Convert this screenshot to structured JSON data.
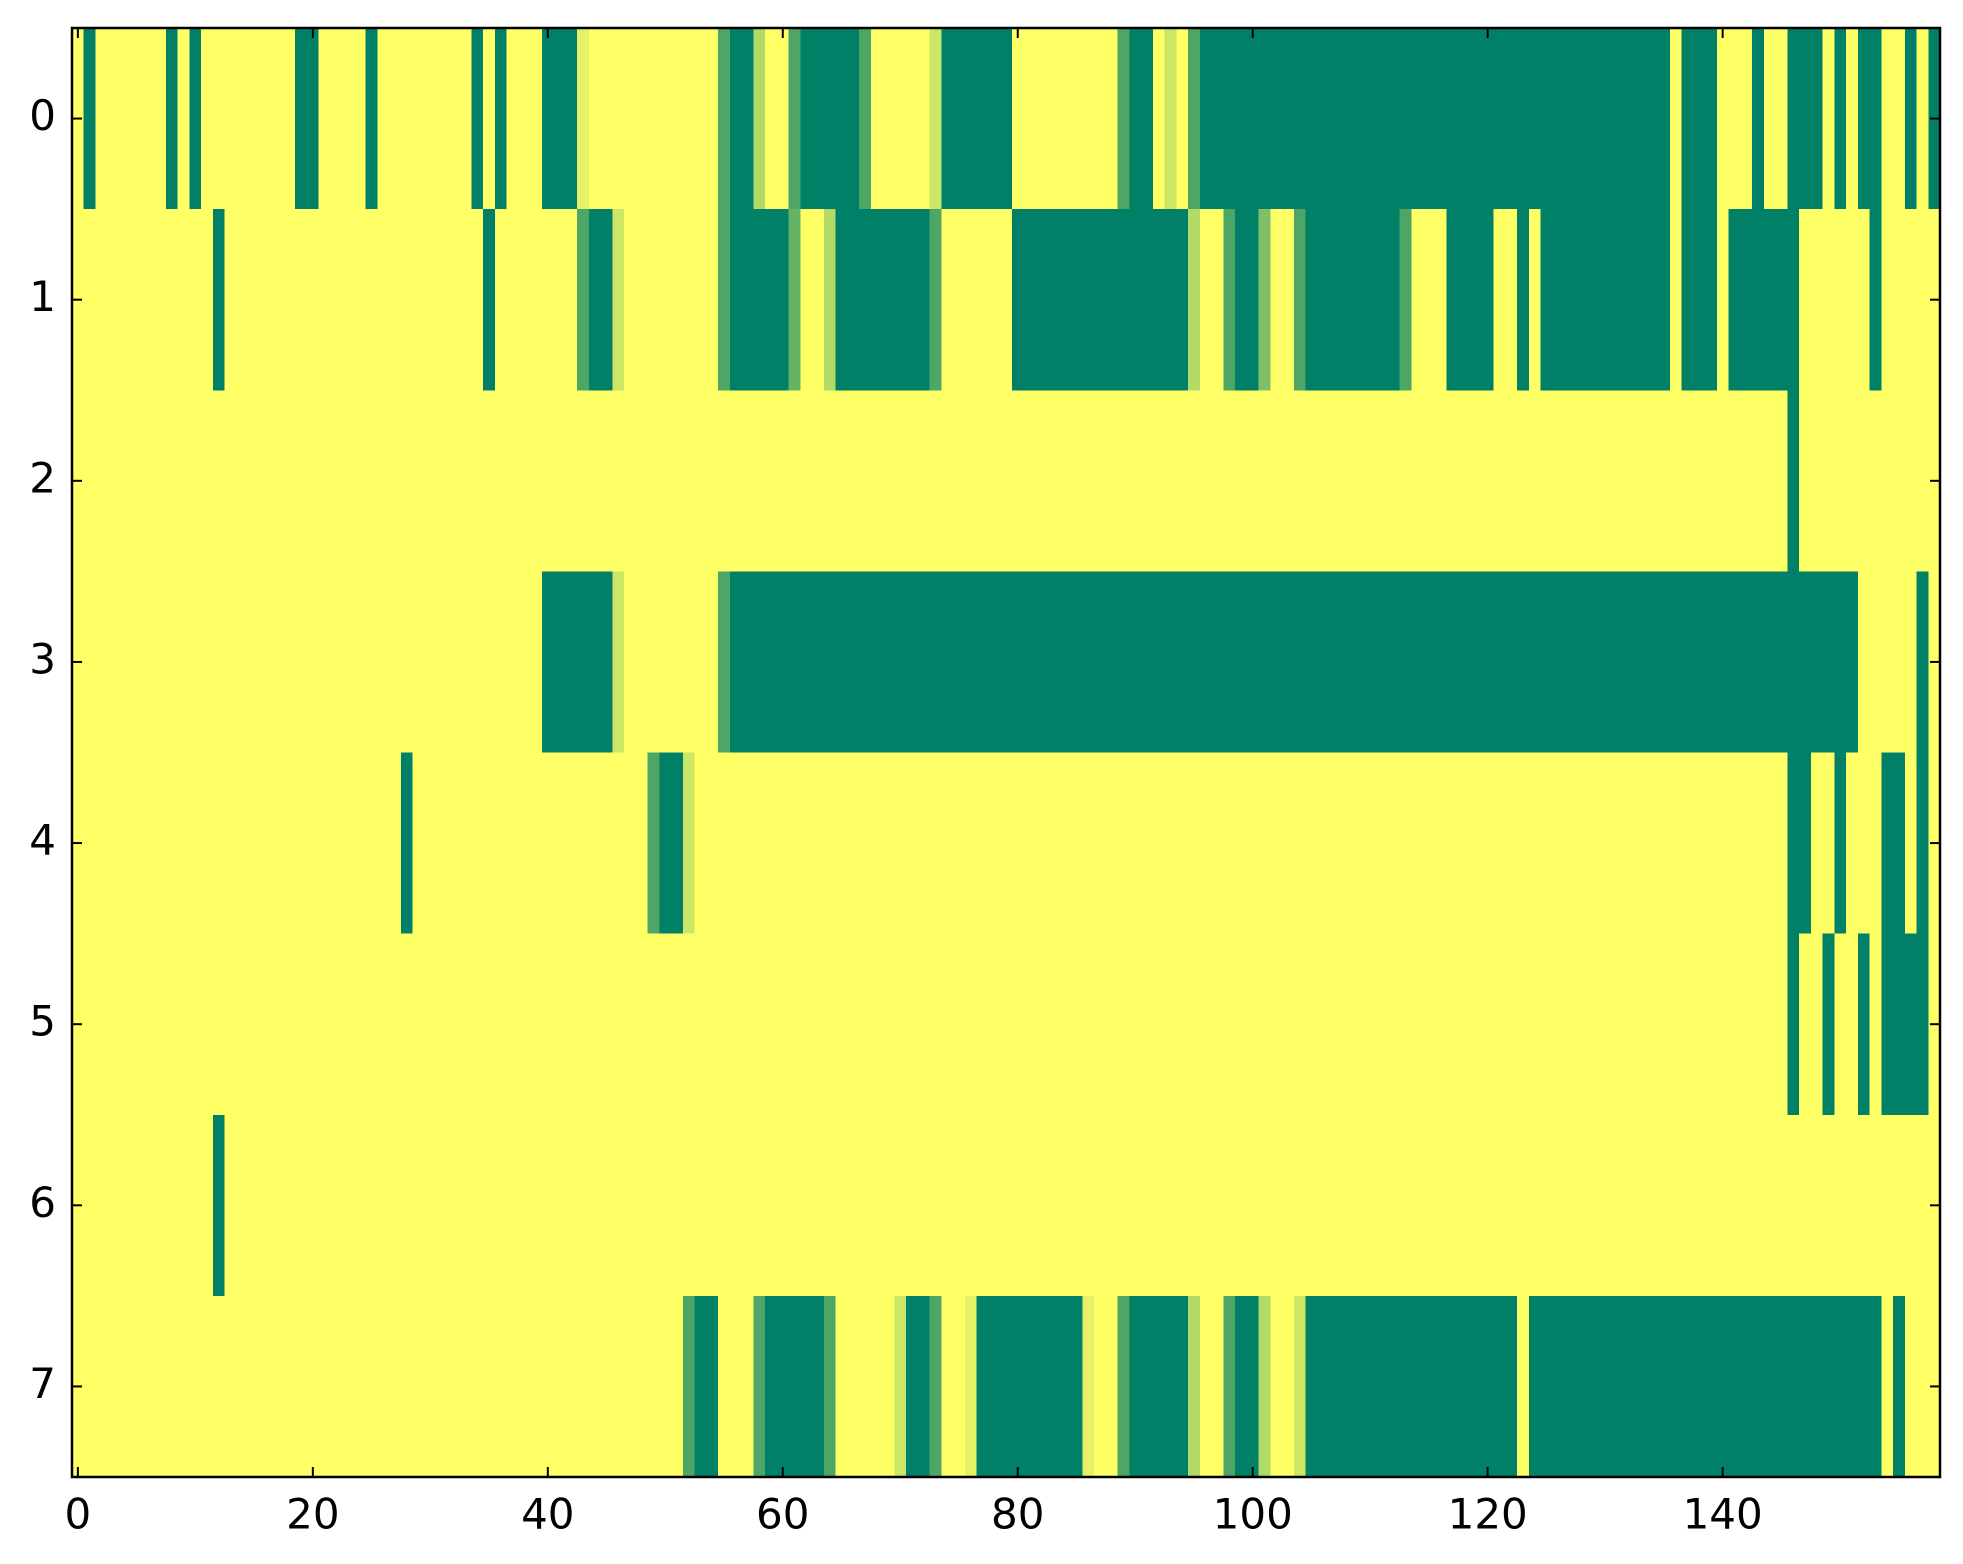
{
  "chart_data": {
    "type": "heatmap",
    "colormap": "summer",
    "xlim": [
      -0.5,
      158.5
    ],
    "xticks": [
      0,
      20,
      40,
      60,
      80,
      100,
      120,
      140
    ],
    "ylim": [
      7.5,
      -0.5
    ],
    "yticks": [
      0,
      1,
      2,
      3,
      4,
      5,
      6,
      7
    ],
    "values": [
      [
        1,
        0,
        1,
        1,
        1,
        1,
        1,
        1,
        0,
        1,
        0,
        1,
        1,
        1,
        1,
        1,
        1,
        1,
        1,
        0,
        0,
        1,
        1,
        1,
        1,
        0,
        1,
        1,
        1,
        1,
        1,
        1,
        1,
        1,
        0,
        1,
        0,
        1,
        1,
        1,
        0,
        0,
        0,
        0.9,
        1,
        1,
        1,
        1,
        1,
        1,
        1,
        1,
        1,
        1,
        1,
        0.3,
        0,
        0,
        0.7,
        1,
        1,
        0.3,
        0,
        0,
        0,
        0,
        0,
        0.3,
        1,
        1,
        1,
        1,
        1,
        0.8,
        0,
        0,
        0,
        0,
        0,
        0,
        1,
        1,
        1,
        1,
        1,
        1,
        1,
        1,
        1,
        0.3,
        0,
        0,
        1,
        0.8,
        1,
        0.3,
        0,
        0,
        0,
        0,
        0,
        0,
        0,
        0,
        0,
        0,
        0,
        0,
        0,
        0,
        0,
        0,
        0,
        0,
        0,
        0,
        0,
        0,
        0,
        0,
        0,
        0,
        0,
        0,
        0,
        0,
        0,
        0,
        0,
        0,
        0,
        0,
        0,
        0,
        0,
        0,
        1,
        0,
        0,
        0,
        1,
        1,
        1,
        0,
        1,
        1,
        0,
        0,
        0,
        1,
        0,
        1,
        0,
        0,
        1,
        1,
        0,
        1,
        0
      ],
      [
        1,
        1,
        1,
        1,
        1,
        1,
        1,
        1,
        1,
        1,
        1,
        1,
        0,
        1,
        1,
        1,
        1,
        1,
        1,
        1,
        1,
        1,
        1,
        1,
        1,
        1,
        1,
        1,
        1,
        1,
        1,
        1,
        1,
        1,
        1,
        0,
        1,
        1,
        1,
        1,
        1,
        1,
        1,
        0.3,
        0,
        0,
        0.8,
        1,
        1,
        1,
        1,
        1,
        1,
        1,
        1,
        0.3,
        0,
        0,
        0,
        0,
        0,
        0.4,
        1,
        1,
        0.7,
        0,
        0,
        0,
        0,
        0,
        0,
        0,
        0,
        0.3,
        1,
        1,
        1,
        1,
        1,
        1,
        0,
        0,
        0,
        0,
        0,
        0,
        0,
        0,
        0,
        0,
        0,
        0,
        0,
        0,
        0,
        0.7,
        1,
        1,
        0.3,
        0,
        0,
        0.5,
        1,
        1,
        0.3,
        0,
        0,
        0,
        0,
        0,
        0,
        0,
        0,
        0.3,
        1,
        1,
        1,
        0,
        0,
        0,
        0,
        1,
        1,
        0,
        1,
        0,
        0,
        0,
        0,
        0,
        0,
        0,
        0,
        0,
        0,
        0,
        1,
        0,
        0,
        0,
        1,
        0,
        0,
        0,
        0,
        0,
        0,
        1,
        1,
        1,
        1,
        1,
        1,
        0,
        1,
        1,
        1,
        1,
        1
      ],
      [
        1,
        1,
        1,
        1,
        1,
        1,
        1,
        1,
        1,
        1,
        1,
        1,
        1,
        1,
        1,
        1,
        1,
        1,
        1,
        1,
        1,
        1,
        1,
        1,
        1,
        1,
        1,
        1,
        1,
        1,
        1,
        1,
        1,
        1,
        1,
        1,
        1,
        1,
        1,
        1,
        1,
        1,
        1,
        1,
        1,
        1,
        1,
        1,
        1,
        1,
        1,
        1,
        1,
        1,
        1,
        1,
        1,
        1,
        1,
        1,
        1,
        1,
        1,
        1,
        1,
        1,
        1,
        1,
        1,
        1,
        1,
        1,
        1,
        1,
        1,
        1,
        1,
        1,
        1,
        1,
        1,
        1,
        1,
        1,
        1,
        1,
        1,
        1,
        1,
        1,
        1,
        1,
        1,
        1,
        1,
        1,
        1,
        1,
        1,
        1,
        1,
        1,
        1,
        1,
        1,
        1,
        1,
        1,
        1,
        1,
        1,
        1,
        1,
        1,
        1,
        1,
        1,
        1,
        1,
        1,
        1,
        1,
        1,
        1,
        1,
        1,
        1,
        1,
        1,
        1,
        1,
        1,
        1,
        1,
        1,
        1,
        1,
        1,
        1,
        1,
        1,
        1,
        1,
        1,
        1,
        1,
        0,
        1,
        1,
        1,
        1,
        1,
        1,
        1,
        1,
        1,
        1,
        1,
        1
      ],
      [
        1,
        1,
        1,
        1,
        1,
        1,
        1,
        1,
        1,
        1,
        1,
        1,
        1,
        1,
        1,
        1,
        1,
        1,
        1,
        1,
        1,
        1,
        1,
        1,
        1,
        1,
        1,
        1,
        1,
        1,
        1,
        1,
        1,
        1,
        1,
        1,
        1,
        1,
        1,
        1,
        0,
        0,
        0,
        0,
        0,
        0,
        0.8,
        1,
        1,
        1,
        1,
        1,
        1,
        1,
        1,
        0.3,
        0,
        0,
        0,
        0,
        0,
        0,
        0,
        0,
        0,
        0,
        0,
        0,
        0,
        0,
        0,
        0,
        0,
        0,
        0,
        0,
        0,
        0,
        0,
        0,
        0,
        0,
        0,
        0,
        0,
        0,
        0,
        0,
        0,
        0,
        0,
        0,
        0,
        0,
        0,
        0,
        0,
        0,
        0,
        0,
        0,
        0,
        0,
        0,
        0,
        0,
        0,
        0,
        0,
        0,
        0,
        0,
        0,
        0,
        0,
        0,
        0,
        0,
        0,
        0,
        0,
        0,
        0,
        0,
        0,
        0,
        0,
        0,
        0,
        0,
        0,
        0,
        0,
        0,
        0,
        0,
        0,
        0,
        0,
        0,
        0,
        0,
        0,
        0,
        0,
        0,
        0,
        0,
        0,
        0,
        0,
        0,
        1,
        1,
        1,
        1,
        1,
        0,
        1
      ],
      [
        1,
        1,
        1,
        1,
        1,
        1,
        1,
        1,
        1,
        1,
        1,
        1,
        1,
        1,
        1,
        1,
        1,
        1,
        1,
        1,
        1,
        1,
        1,
        1,
        1,
        1,
        1,
        1,
        0,
        1,
        1,
        1,
        1,
        1,
        1,
        1,
        1,
        1,
        1,
        1,
        1,
        1,
        1,
        1,
        1,
        1,
        1,
        1,
        1,
        0.3,
        0,
        0,
        0.8,
        1,
        1,
        1,
        1,
        1,
        1,
        1,
        1,
        1,
        1,
        1,
        1,
        1,
        1,
        1,
        1,
        1,
        1,
        1,
        1,
        1,
        1,
        1,
        1,
        1,
        1,
        1,
        1,
        1,
        1,
        1,
        1,
        1,
        1,
        1,
        1,
        1,
        1,
        1,
        1,
        1,
        1,
        1,
        1,
        1,
        1,
        1,
        1,
        1,
        1,
        1,
        1,
        1,
        1,
        1,
        1,
        1,
        1,
        1,
        1,
        1,
        1,
        1,
        1,
        1,
        1,
        1,
        1,
        1,
        1,
        1,
        1,
        1,
        1,
        1,
        1,
        1,
        1,
        1,
        1,
        1,
        1,
        1,
        1,
        1,
        1,
        1,
        1,
        1,
        1,
        1,
        1,
        1,
        0,
        0,
        1,
        1,
        0,
        1,
        1,
        1,
        0,
        0,
        1,
        0,
        1
      ],
      [
        1,
        1,
        1,
        1,
        1,
        1,
        1,
        1,
        1,
        1,
        1,
        1,
        1,
        1,
        1,
        1,
        1,
        1,
        1,
        1,
        1,
        1,
        1,
        1,
        1,
        1,
        1,
        1,
        1,
        1,
        1,
        1,
        1,
        1,
        1,
        1,
        1,
        1,
        1,
        1,
        1,
        1,
        1,
        1,
        1,
        1,
        1,
        1,
        1,
        1,
        1,
        1,
        1,
        1,
        1,
        1,
        1,
        1,
        1,
        1,
        1,
        1,
        1,
        1,
        1,
        1,
        1,
        1,
        1,
        1,
        1,
        1,
        1,
        1,
        1,
        1,
        1,
        1,
        1,
        1,
        1,
        1,
        1,
        1,
        1,
        1,
        1,
        1,
        1,
        1,
        1,
        1,
        1,
        1,
        1,
        1,
        1,
        1,
        1,
        1,
        1,
        1,
        1,
        1,
        1,
        1,
        1,
        1,
        1,
        1,
        1,
        1,
        1,
        1,
        1,
        1,
        1,
        1,
        1,
        1,
        1,
        1,
        1,
        1,
        1,
        1,
        1,
        1,
        1,
        1,
        1,
        1,
        1,
        1,
        1,
        1,
        1,
        1,
        1,
        1,
        1,
        1,
        1,
        1,
        1,
        1,
        0,
        1,
        1,
        0,
        1,
        1,
        0,
        1,
        0,
        0,
        0,
        0,
        1
      ],
      [
        1,
        1,
        1,
        1,
        1,
        1,
        1,
        1,
        1,
        1,
        1,
        1,
        0,
        1,
        1,
        1,
        1,
        1,
        1,
        1,
        1,
        1,
        1,
        1,
        1,
        1,
        1,
        1,
        1,
        1,
        1,
        1,
        1,
        1,
        1,
        1,
        1,
        1,
        1,
        1,
        1,
        1,
        1,
        1,
        1,
        1,
        1,
        1,
        1,
        1,
        1,
        1,
        1,
        1,
        1,
        1,
        1,
        1,
        1,
        1,
        1,
        1,
        1,
        1,
        1,
        1,
        1,
        1,
        1,
        1,
        1,
        1,
        1,
        1,
        1,
        1,
        1,
        1,
        1,
        1,
        1,
        1,
        1,
        1,
        1,
        1,
        1,
        1,
        1,
        1,
        1,
        1,
        1,
        1,
        1,
        1,
        1,
        1,
        1,
        1,
        1,
        1,
        1,
        1,
        1,
        1,
        1,
        1,
        1,
        1,
        1,
        1,
        1,
        1,
        1,
        1,
        1,
        1,
        1,
        1,
        1,
        1,
        1,
        1,
        1,
        1,
        1,
        1,
        1,
        1,
        1,
        1,
        1,
        1,
        1,
        1,
        1,
        1,
        1,
        1,
        1,
        1,
        1,
        1,
        1,
        1,
        1,
        1,
        1,
        1,
        1,
        1,
        1,
        1,
        1,
        1,
        1,
        1,
        1
      ],
      [
        1,
        1,
        1,
        1,
        1,
        1,
        1,
        1,
        1,
        1,
        1,
        1,
        1,
        1,
        1,
        1,
        1,
        1,
        1,
        1,
        1,
        1,
        1,
        1,
        1,
        1,
        1,
        1,
        1,
        1,
        1,
        1,
        1,
        1,
        1,
        1,
        1,
        1,
        1,
        1,
        1,
        1,
        1,
        1,
        1,
        1,
        1,
        1,
        1,
        1,
        1,
        1,
        0.3,
        0,
        0,
        1,
        1,
        1,
        0.3,
        0,
        0,
        0,
        0,
        0,
        0.3,
        1,
        1,
        1,
        1,
        1,
        0.8,
        0,
        0,
        0.3,
        1,
        1,
        0.9,
        0,
        0,
        0,
        0,
        0,
        0,
        0,
        0,
        0,
        0.9,
        1,
        1,
        0.3,
        0,
        0,
        0,
        0,
        0,
        0.7,
        1,
        1,
        0.3,
        0,
        0,
        0.7,
        1,
        1,
        0.8,
        0,
        0,
        0,
        0,
        0,
        0,
        0,
        0,
        0,
        0,
        0,
        0,
        0,
        0,
        0,
        0,
        0,
        0,
        1,
        0,
        0,
        0,
        0,
        0,
        0,
        0,
        0,
        0,
        0,
        0,
        0,
        0,
        0,
        0,
        0,
        0,
        0,
        0,
        0,
        0,
        0,
        0,
        0,
        0,
        0,
        0,
        0,
        0,
        0,
        1,
        0,
        1,
        1,
        1
      ]
    ]
  }
}
